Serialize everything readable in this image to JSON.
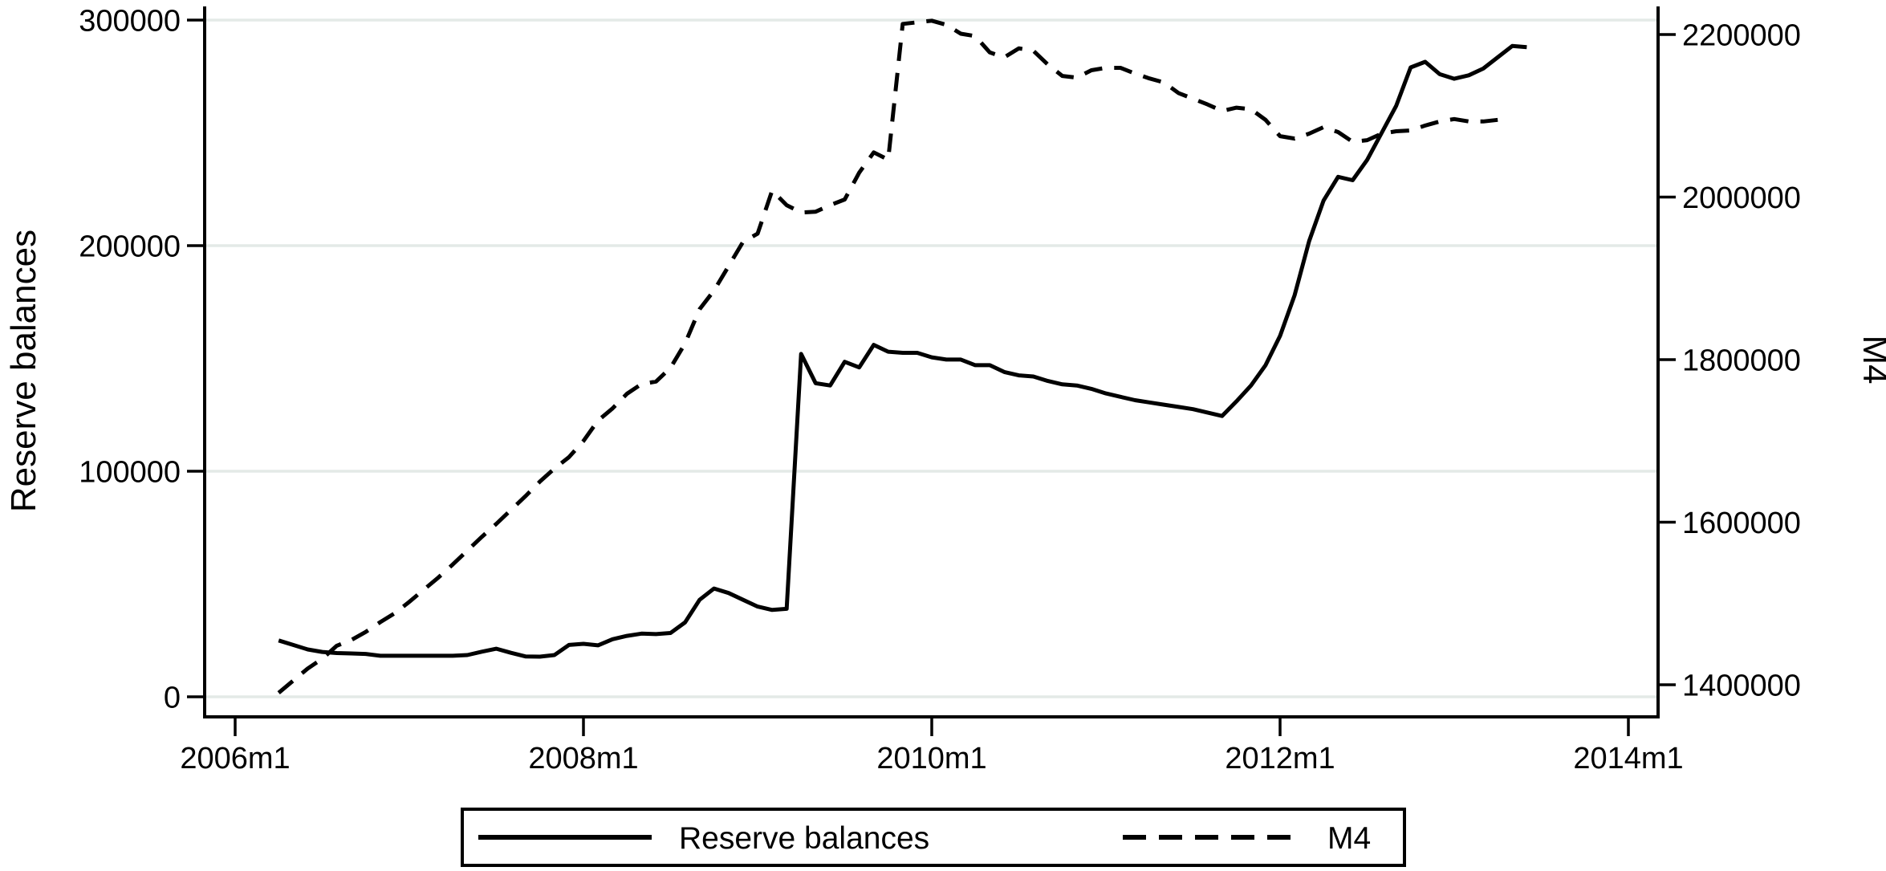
{
  "chart_data": {
    "type": "line",
    "title": "",
    "background": "#ffffff",
    "grid": true,
    "grid_color": "#e4eae7",
    "line_color": "#000000",
    "x_axis": {
      "unit": "month",
      "tick_labels": [
        "2006m1",
        "2008m1",
        "2010m1",
        "2012m1",
        "2014m1"
      ],
      "tick_month_index": [
        0,
        24,
        48,
        72,
        96
      ],
      "range_months": [
        "2005m11",
        "2014m3"
      ]
    },
    "left_axis": {
      "label": "Reserve balances",
      "tick_labels": [
        "0",
        "100000",
        "200000",
        "300000"
      ],
      "tick_values": [
        0,
        100000,
        200000,
        300000
      ],
      "ylim": [
        0,
        300000
      ]
    },
    "right_axis": {
      "label": "M4",
      "tick_labels": [
        "1400000",
        "1600000",
        "1800000",
        "2000000",
        "2200000"
      ],
      "tick_values": [
        1400000,
        1600000,
        1800000,
        2000000,
        2200000
      ],
      "ylim": [
        1400000,
        2200000
      ]
    },
    "legend": {
      "position": "bottom",
      "entries": [
        "Reserve balances",
        "M4"
      ]
    },
    "series": [
      {
        "name": "Reserve balances",
        "axis": "left",
        "style": "solid",
        "start": "2006m4",
        "start_month_index": 3,
        "values": [
          25000,
          23000,
          21000,
          19900,
          19400,
          19200,
          19000,
          18200,
          18200,
          18200,
          18200,
          18200,
          18200,
          18500,
          20000,
          21300,
          19500,
          17900,
          17800,
          18500,
          23000,
          23500,
          22800,
          25500,
          27000,
          28000,
          27800,
          28300,
          33000,
          43000,
          48000,
          46000,
          43000,
          40000,
          38500,
          39000,
          152000,
          139000,
          138000,
          148500,
          146000,
          156000,
          153000,
          152500,
          152500,
          150500,
          149500,
          149500,
          147000,
          147000,
          144000,
          142500,
          142000,
          140000,
          138500,
          138000,
          136500,
          134500,
          133000,
          131500,
          130500,
          129500,
          128500,
          127500,
          126000,
          124500,
          131000,
          138000,
          147000,
          160000,
          178000,
          202000,
          220000,
          230500,
          229000,
          238000,
          250000,
          262000,
          279000,
          281500,
          276000,
          274000,
          275500,
          278500,
          283500,
          288500,
          288000
        ]
      },
      {
        "name": "M4",
        "axis": "right",
        "style": "dashed",
        "start": "2006m4",
        "start_month_index": 3,
        "values": [
          1390000,
          1405000,
          1420000,
          1432000,
          1448000,
          1455000,
          1465000,
          1477000,
          1488000,
          1502000,
          1517000,
          1532000,
          1548000,
          1565000,
          1582000,
          1598000,
          1615000,
          1632000,
          1650000,
          1666000,
          1680000,
          1700000,
          1725000,
          1740000,
          1758000,
          1770000,
          1773000,
          1790000,
          1820000,
          1862000,
          1885000,
          1915000,
          1945000,
          1955000,
          2008000,
          1990000,
          1981000,
          1982000,
          1990000,
          1997000,
          2030000,
          2055000,
          2046000,
          2213000,
          2215000,
          2217000,
          2212000,
          2201000,
          2198000,
          2178000,
          2172000,
          2183000,
          2180000,
          2163000,
          2149000,
          2147000,
          2156000,
          2159000,
          2159000,
          2152000,
          2146000,
          2141000,
          2128000,
          2121000,
          2114000,
          2106000,
          2110000,
          2108000,
          2095000,
          2075000,
          2072000,
          2078000,
          2086000,
          2080000,
          2068000,
          2070000,
          2078000,
          2081000,
          2082000,
          2088000,
          2093000,
          2096000,
          2093000,
          2093000,
          2095000
        ]
      }
    ]
  }
}
